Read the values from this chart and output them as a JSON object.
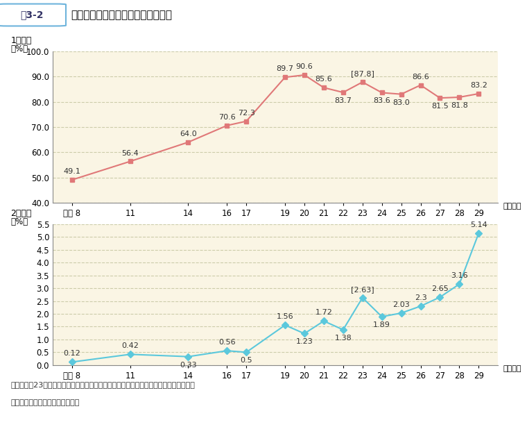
{
  "title": "民間における育児休業取得率の推移",
  "fig_label": "図3-2",
  "x_labels": [
    "平成 8",
    "11",
    "14",
    "16",
    "17",
    "19",
    "20",
    "21",
    "22",
    "23",
    "24",
    "25",
    "26",
    "27",
    "28",
    "29"
  ],
  "x_values": [
    8,
    11,
    14,
    16,
    17,
    19,
    20,
    21,
    22,
    23,
    24,
    25,
    26,
    27,
    28,
    29
  ],
  "female_values": [
    49.1,
    56.4,
    64.0,
    70.6,
    72.3,
    89.7,
    90.6,
    85.6,
    83.7,
    87.8,
    83.6,
    83.0,
    86.6,
    81.5,
    81.8,
    83.2
  ],
  "female_brackets": [
    false,
    false,
    false,
    false,
    false,
    false,
    false,
    false,
    false,
    true,
    false,
    false,
    false,
    false,
    false,
    false
  ],
  "male_values": [
    0.12,
    0.42,
    0.33,
    0.56,
    0.5,
    1.56,
    1.23,
    1.72,
    1.38,
    2.63,
    1.89,
    2.03,
    2.3,
    2.65,
    3.16,
    5.14
  ],
  "male_brackets": [
    false,
    false,
    false,
    false,
    false,
    false,
    false,
    false,
    false,
    true,
    false,
    false,
    false,
    false,
    false,
    false
  ],
  "female_color": "#E07878",
  "male_color": "#5BC8DC",
  "bg_color": "#FAF5E4",
  "outer_bg_color": "#FFFFFF",
  "grid_color": "#CCCCAA",
  "female_ylim": [
    40.0,
    100.0
  ],
  "female_yticks": [
    40.0,
    50.0,
    60.0,
    70.0,
    80.0,
    90.0,
    100.0
  ],
  "male_ylim": [
    0.0,
    5.5
  ],
  "male_yticks": [
    0.0,
    0.5,
    1.0,
    1.5,
    2.0,
    2.5,
    3.0,
    3.5,
    4.0,
    4.5,
    5.0,
    5.5
  ],
  "section1_label": "1　女性",
  "section2_label": "2　男性",
  "pct_label": "（%）",
  "nendo_label": "（年度）",
  "note_text": "（注）平成23年度の［　］内の割合は、岩手県、宮城県及び福島県を除く全国の結果。",
  "source_text": "厚生労働省「雇用均等基本調査」",
  "female_label_above": [
    true,
    true,
    true,
    true,
    true,
    true,
    true,
    true,
    false,
    true,
    false,
    false,
    true,
    false,
    false,
    true
  ],
  "male_label_above": [
    true,
    true,
    false,
    true,
    false,
    true,
    false,
    true,
    false,
    true,
    false,
    true,
    true,
    true,
    true,
    true
  ]
}
